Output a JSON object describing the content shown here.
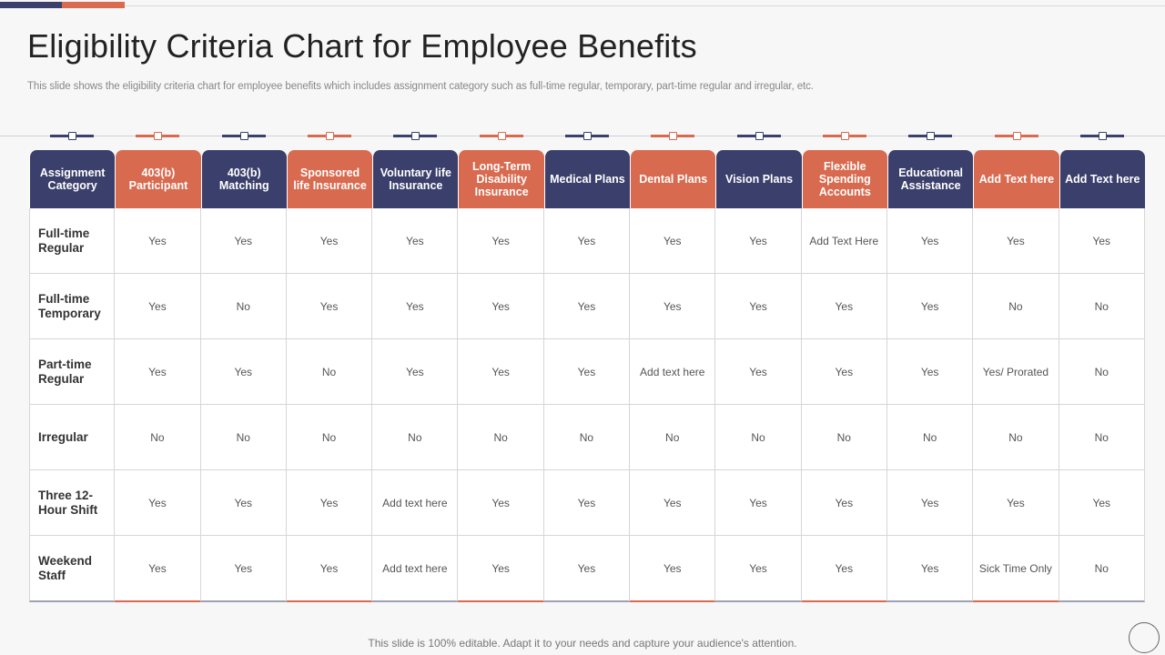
{
  "title": "Eligibility Criteria Chart for Employee Benefits",
  "subtitle": "This slide shows the eligibility criteria chart for  employee benefits which includes assignment category such as full-time regular, temporary, part-time regular and irregular, etc.",
  "footer": "This slide is 100% editable. Adapt it to your needs and capture your audience's attention.",
  "colors": {
    "navy": "#3b3f6b",
    "orange": "#d86a4f"
  },
  "table": {
    "headers": [
      {
        "label": "Assignment Category",
        "color": "navy"
      },
      {
        "label": "403(b) Participant",
        "color": "orange"
      },
      {
        "label": "403(b) Matching",
        "color": "navy"
      },
      {
        "label": "Sponsored life Insurance",
        "color": "orange"
      },
      {
        "label": "Voluntary life Insurance",
        "color": "navy"
      },
      {
        "label": "Long-Term Disability Insurance",
        "color": "orange"
      },
      {
        "label": "Medical Plans",
        "color": "navy"
      },
      {
        "label": "Dental Plans",
        "color": "orange"
      },
      {
        "label": "Vision Plans",
        "color": "navy"
      },
      {
        "label": "Flexible Spending Accounts",
        "color": "orange"
      },
      {
        "label": "Educational Assistance",
        "color": "navy"
      },
      {
        "label": "Add Text here",
        "color": "orange"
      },
      {
        "label": "Add Text here",
        "color": "navy"
      }
    ],
    "rows": [
      {
        "category": "Full-time Regular",
        "cells": [
          "Yes",
          "Yes",
          "Yes",
          "Yes",
          "Yes",
          "Yes",
          "Yes",
          "Yes",
          "Add Text Here",
          "Yes",
          "Yes",
          "Yes"
        ]
      },
      {
        "category": "Full-time Temporary",
        "cells": [
          "Yes",
          "No",
          "Yes",
          "Yes",
          "Yes",
          "Yes",
          "Yes",
          "Yes",
          "Yes",
          "Yes",
          "No",
          "No"
        ]
      },
      {
        "category": "Part-time Regular",
        "cells": [
          "Yes",
          "Yes",
          "No",
          "Yes",
          "Yes",
          "Yes",
          "Add text here",
          "Yes",
          "Yes",
          "Yes",
          "Yes/ Prorated",
          "No"
        ]
      },
      {
        "category": "Irregular",
        "cells": [
          "No",
          "No",
          "No",
          "No",
          "No",
          "No",
          "No",
          "No",
          "No",
          "No",
          "No",
          "No"
        ]
      },
      {
        "category": "Three 12-Hour Shift",
        "cells": [
          "Yes",
          "Yes",
          "Yes",
          "Add text here",
          "Yes",
          "Yes",
          "Yes",
          "Yes",
          "Yes",
          "Yes",
          "Yes",
          "Yes"
        ]
      },
      {
        "category": "Weekend Staff",
        "cells": [
          "Yes",
          "Yes",
          "Yes",
          "Add text here",
          "Yes",
          "Yes",
          "Yes",
          "Yes",
          "Yes",
          "Yes",
          "Sick Time Only",
          "No"
        ]
      }
    ]
  }
}
